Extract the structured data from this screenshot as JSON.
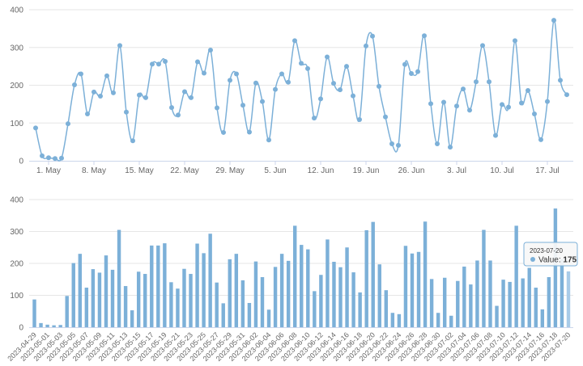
{
  "chart_data": [
    {
      "type": "line",
      "ylim": [
        0,
        400
      ],
      "y_ticks": [
        0,
        100,
        200,
        300,
        400
      ],
      "x_tick_labels": [
        "1. May",
        "8. May",
        "15. May",
        "22. May",
        "29. May",
        "5. Jun",
        "12. Jun",
        "19. Jun",
        "26. Jun",
        "3. Jul",
        "10. Jul",
        "17. Jul"
      ],
      "x_tick_dates": [
        "2023-05-01",
        "2023-05-08",
        "2023-05-15",
        "2023-05-22",
        "2023-05-29",
        "2023-06-05",
        "2023-06-12",
        "2023-06-19",
        "2023-06-26",
        "2023-07-03",
        "2023-07-10",
        "2023-07-17"
      ],
      "grid": true,
      "smooth": true,
      "color": "#7cb0d8",
      "x_start": "2023-04-29",
      "values": [
        87,
        13,
        8,
        6,
        7,
        98,
        201,
        230,
        124,
        182,
        171,
        225,
        180,
        305,
        129,
        53,
        174,
        167,
        256,
        256,
        263,
        141,
        121,
        183,
        167,
        262,
        232,
        293,
        140,
        75,
        213,
        230,
        147,
        76,
        206,
        157,
        55,
        189,
        230,
        208,
        318,
        258,
        244,
        113,
        164,
        275,
        205,
        188,
        250,
        172,
        109,
        304,
        330,
        197,
        116,
        45,
        41,
        255,
        231,
        236,
        331,
        151,
        45,
        155,
        36,
        145,
        190,
        134,
        209,
        305,
        209,
        67,
        149,
        142,
        318,
        153,
        186,
        124,
        56,
        157,
        372,
        213,
        175
      ]
    },
    {
      "type": "bar",
      "ylim": [
        0,
        400
      ],
      "y_ticks": [
        0,
        100,
        200,
        300,
        400
      ],
      "x_tick_labels": [
        "2023-04-29",
        "2023-05-01",
        "2023-05-03",
        "2023-05-05",
        "2023-05-07",
        "2023-05-09",
        "2023-05-11",
        "2023-05-13",
        "2023-05-15",
        "2023-05-17",
        "2023-05-19",
        "2023-05-21",
        "2023-05-23",
        "2023-05-25",
        "2023-05-27",
        "2023-05-29",
        "2023-05-31",
        "2023-06-02",
        "2023-06-04",
        "2023-06-06",
        "2023-06-08",
        "2023-06-10",
        "2023-06-12",
        "2023-06-14",
        "2023-06-16",
        "2023-06-18",
        "2023-06-20",
        "2023-06-22",
        "2023-06-24",
        "2023-06-26",
        "2023-06-28",
        "2023-06-30",
        "2023-07-02",
        "2023-07-04",
        "2023-07-06",
        "2023-07-08",
        "2023-07-10",
        "2023-07-12",
        "2023-07-14",
        "2023-07-16",
        "2023-07-18",
        "2023-07-20"
      ],
      "grid": true,
      "color": "#7cb0d8",
      "highlight_color": "#a8cbe8",
      "values_from": "same as line chart"
    }
  ],
  "tooltip": {
    "date": "2023-07-20",
    "label": "Value: ",
    "value": "175",
    "marker_color": "#7cb0d8"
  }
}
